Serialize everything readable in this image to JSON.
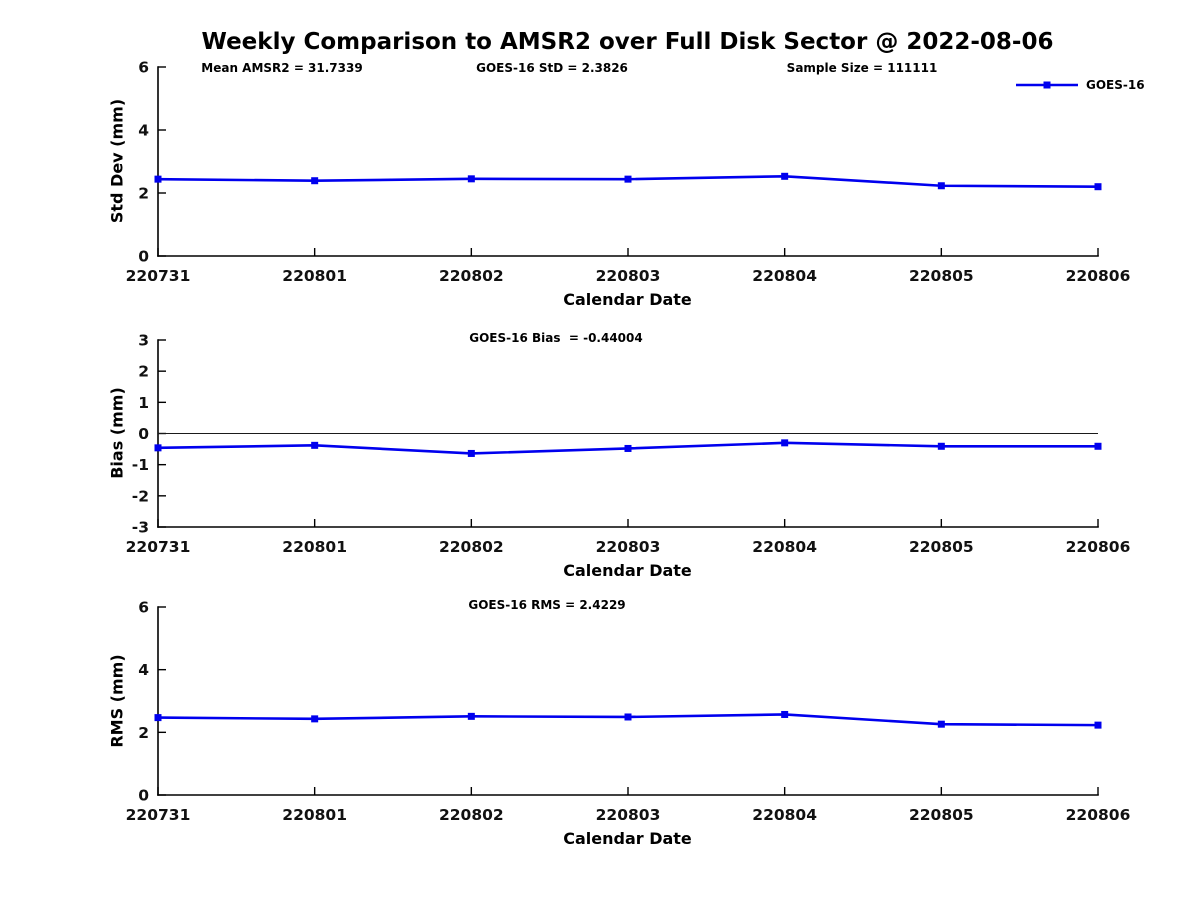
{
  "title": "Weekly Comparison to AMSR2 over Full Disk Sector @ 2022-08-06",
  "chart_data": {
    "type": "line",
    "title": "Weekly Comparison to AMSR2 over Full Disk Sector @ 2022-08-06",
    "xlabel": "Calendar Date",
    "categories": [
      "220731",
      "220801",
      "220802",
      "220803",
      "220804",
      "220805",
      "220806"
    ],
    "legend": [
      "GOES-16"
    ],
    "legend_position": "top-right",
    "series_color": "#0000ee",
    "marker": "square",
    "grid": false,
    "stats": {
      "mean_amsr2": 31.7339,
      "goes16_std": 2.3826,
      "sample_size": 111111,
      "goes16_bias": -0.44004,
      "goes16_rms": 2.4229
    },
    "plots": [
      {
        "name": "std-dev",
        "ylabel": "Std Dev (mm)",
        "ylim": [
          0,
          6
        ],
        "yticks": [
          0,
          2,
          4,
          6
        ],
        "annotations": [
          "Mean AMSR2 = 31.7339",
          "GOES-16 StD = 2.3826",
          "Sample Size = 111111"
        ],
        "series": [
          {
            "name": "GOES-16",
            "values": [
              2.44,
              2.39,
              2.45,
              2.44,
              2.53,
              2.23,
              2.2
            ]
          }
        ]
      },
      {
        "name": "bias",
        "ylabel": "Bias (mm)",
        "ylim": [
          -3,
          3
        ],
        "yticks": [
          -3,
          -2,
          -1,
          0,
          1,
          2,
          3
        ],
        "zero_line": true,
        "annotations": [
          "GOES-16 Bias  = -0.44004"
        ],
        "series": [
          {
            "name": "GOES-16",
            "values": [
              -0.46,
              -0.38,
              -0.64,
              -0.48,
              -0.3,
              -0.41,
              -0.41
            ]
          }
        ]
      },
      {
        "name": "rms",
        "ylabel": "RMS (mm)",
        "ylim": [
          0,
          6
        ],
        "yticks": [
          0,
          2,
          4,
          6
        ],
        "annotations": [
          "GOES-16 RMS = 2.4229"
        ],
        "series": [
          {
            "name": "GOES-16",
            "values": [
              2.47,
              2.43,
              2.51,
              2.49,
              2.57,
              2.26,
              2.23
            ]
          }
        ]
      }
    ]
  }
}
